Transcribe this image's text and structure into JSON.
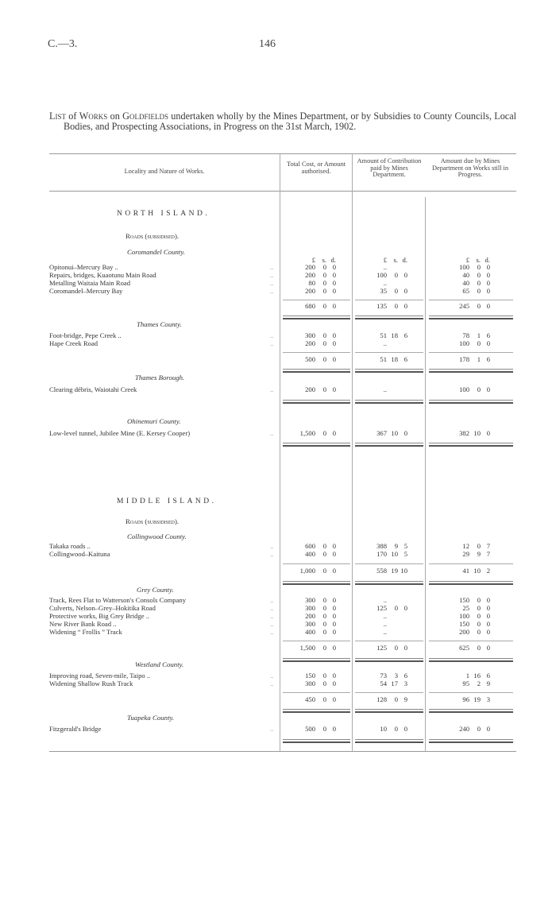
{
  "page": {
    "ref": "C.—3.",
    "number": "146"
  },
  "title": {
    "prefix_sc": "List",
    "t1": " of ",
    "works_sc": "Works",
    "t2": " on ",
    "goldfields_sc": "Goldfields",
    "rest": " undertaken wholly by the Mines Department, or by Subsidies to County Councils, Local Bodies, and Prospecting Associations, in Progress on the 31st March, 1902."
  },
  "columns": {
    "locality": "Locality and Nature of Works.",
    "total": "Total Cost, or Amount authorised.",
    "paid": "Amount of Contribution paid by Mines Department.",
    "due": "Amount due by Mines Department on Works still in Progress."
  },
  "currency": [
    "£",
    "s.",
    "d."
  ],
  "sections": [
    {
      "island": "NORTH ISLAND.",
      "category": "Roads (subsidised).",
      "groups": [
        {
          "name": "Coromandel County.",
          "rows": [
            {
              "work": "Opitonui–Mercury Bay ..",
              "total": [
                "200",
                "0",
                "0"
              ],
              "paid": [
                "..",
                "",
                ""
              ],
              "due": [
                "100",
                "0",
                "0"
              ]
            },
            {
              "work": "Repairs, bridges, Kuaotunu Main Road",
              "total": [
                "200",
                "0",
                "0"
              ],
              "paid": [
                "100",
                "0",
                "0"
              ],
              "due": [
                "40",
                "0",
                "0"
              ]
            },
            {
              "work": "Metalling Waitaia Main Road",
              "total": [
                "80",
                "0",
                "0"
              ],
              "paid": [
                "..",
                "",
                ""
              ],
              "due": [
                "40",
                "0",
                "0"
              ]
            },
            {
              "work": "Coromandel–Mercury Bay",
              "total": [
                "200",
                "0",
                "0"
              ],
              "paid": [
                "35",
                "0",
                "0"
              ],
              "due": [
                "65",
                "0",
                "0"
              ]
            }
          ],
          "subtotal": {
            "total": [
              "680",
              "0",
              "0"
            ],
            "paid": [
              "135",
              "0",
              "0"
            ],
            "due": [
              "245",
              "0",
              "0"
            ]
          }
        },
        {
          "name": "Thames County.",
          "rows": [
            {
              "work": "Foot-bridge, Pepe Creek ..",
              "total": [
                "300",
                "0",
                "0"
              ],
              "paid": [
                "51",
                "18",
                "6"
              ],
              "due": [
                "78",
                "1",
                "6"
              ]
            },
            {
              "work": "Hape Creek Road",
              "total": [
                "200",
                "0",
                "0"
              ],
              "paid": [
                "..",
                "",
                ""
              ],
              "due": [
                "100",
                "0",
                "0"
              ]
            }
          ],
          "subtotal": {
            "total": [
              "500",
              "0",
              "0"
            ],
            "paid": [
              "51",
              "18",
              "6"
            ],
            "due": [
              "178",
              "1",
              "6"
            ]
          }
        },
        {
          "name": "Thames Borough.",
          "rows": [
            {
              "work": "Clearing débris, Waiotahi Creek",
              "total": [
                "200",
                "0",
                "0"
              ],
              "paid": [
                "..",
                "",
                ""
              ],
              "due": [
                "100",
                "0",
                "0"
              ]
            }
          ]
        },
        {
          "name": "Ohinemuri County.",
          "rows": [
            {
              "work": "Low-level tunnel, Jubilee Mine (E. Kersey Cooper)",
              "total": [
                "1,500",
                "0",
                "0"
              ],
              "paid": [
                "367",
                "10",
                "0"
              ],
              "due": [
                "382",
                "10",
                "0"
              ]
            }
          ]
        }
      ]
    },
    {
      "island": "MIDDLE ISLAND.",
      "category": "Roads (subsidised).",
      "groups": [
        {
          "name": "Collingwood County.",
          "rows": [
            {
              "work": "Takaka roads ..",
              "total": [
                "600",
                "0",
                "0"
              ],
              "paid": [
                "388",
                "9",
                "5"
              ],
              "due": [
                "12",
                "0",
                "7"
              ]
            },
            {
              "work": "Collingwood–Kaituna",
              "total": [
                "400",
                "0",
                "0"
              ],
              "paid": [
                "170",
                "10",
                "5"
              ],
              "due": [
                "29",
                "9",
                "7"
              ]
            }
          ],
          "subtotal": {
            "total": [
              "1,000",
              "0",
              "0"
            ],
            "paid": [
              "558",
              "19",
              "10"
            ],
            "due": [
              "41",
              "10",
              "2"
            ]
          }
        },
        {
          "name": "Grey County.",
          "rows": [
            {
              "work": "Track, Rees Flat to Watterson's Consols Company",
              "total": [
                "300",
                "0",
                "0"
              ],
              "paid": [
                "..",
                "",
                ""
              ],
              "due": [
                "150",
                "0",
                "0"
              ]
            },
            {
              "work": "Culverts, Nelson–Grey–Hokitika Road",
              "total": [
                "300",
                "0",
                "0"
              ],
              "paid": [
                "125",
                "0",
                "0"
              ],
              "due": [
                "25",
                "0",
                "0"
              ]
            },
            {
              "work": "Protective works, Big Grey Bridge ..",
              "total": [
                "200",
                "0",
                "0"
              ],
              "paid": [
                "..",
                "",
                ""
              ],
              "due": [
                "100",
                "0",
                "0"
              ]
            },
            {
              "work": "New River Bank Road ..",
              "total": [
                "300",
                "0",
                "0"
              ],
              "paid": [
                "..",
                "",
                ""
              ],
              "due": [
                "150",
                "0",
                "0"
              ]
            },
            {
              "work": "Widening “ Frollis ” Track",
              "total": [
                "400",
                "0",
                "0"
              ],
              "paid": [
                "..",
                "",
                ""
              ],
              "due": [
                "200",
                "0",
                "0"
              ]
            }
          ],
          "subtotal": {
            "total": [
              "1,500",
              "0",
              "0"
            ],
            "paid": [
              "125",
              "0",
              "0"
            ],
            "due": [
              "625",
              "0",
              "0"
            ]
          }
        },
        {
          "name": "Westland County.",
          "rows": [
            {
              "work": "Improving road, Seven-mile, Taipo ..",
              "total": [
                "150",
                "0",
                "0"
              ],
              "paid": [
                "73",
                "3",
                "6"
              ],
              "due": [
                "1",
                "16",
                "6"
              ]
            },
            {
              "work": "Widening Shallow Rush Track",
              "total": [
                "300",
                "0",
                "0"
              ],
              "paid": [
                "54",
                "17",
                "3"
              ],
              "due": [
                "95",
                "2",
                "9"
              ]
            }
          ],
          "subtotal": {
            "total": [
              "450",
              "0",
              "0"
            ],
            "paid": [
              "128",
              "0",
              "9"
            ],
            "due": [
              "96",
              "19",
              "3"
            ]
          }
        },
        {
          "name": "Tuapeka County.",
          "rows": [
            {
              "work": "Fitzgerald's Bridge",
              "total": [
                "500",
                "0",
                "0"
              ],
              "paid": [
                "10",
                "0",
                "0"
              ],
              "due": [
                "240",
                "0",
                "0"
              ]
            }
          ]
        }
      ]
    }
  ]
}
